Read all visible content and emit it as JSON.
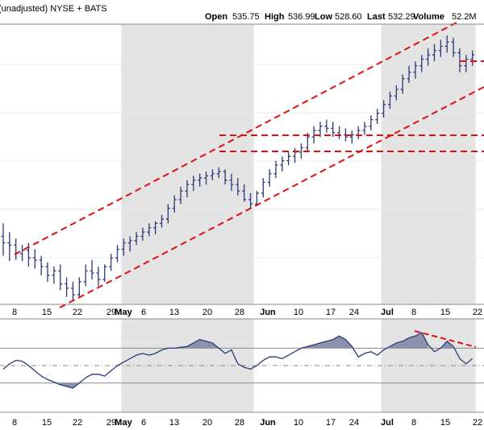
{
  "header": {
    "subtitle": "(unadjusted)  NYSE + BATS",
    "open_label": "Open",
    "open_value": "535.75",
    "high_label": "High",
    "high_value": "536.99",
    "low_label": "Low",
    "low_value": "528.60",
    "last_label": "Last",
    "last_value": "532.29",
    "volume_label": "Volume",
    "volume_value": "52.2M"
  },
  "colors": {
    "bar": "#2b3a78",
    "trendline": "#e01010",
    "shade": "#e4e4e4",
    "osc_fill": "#8a93ab",
    "osc_line": "#2b3a78",
    "grid": "#c8c8c8",
    "border": "#888888"
  },
  "chart_data": [
    {
      "type": "ohlc",
      "x": [
        "Apr 5",
        "Apr 8",
        "Apr 9",
        "Apr 10",
        "Apr 11",
        "Apr 12",
        "Apr 15",
        "Apr 16",
        "Apr 17",
        "Apr 18",
        "Apr 19",
        "Apr 22",
        "Apr 23",
        "Apr 24",
        "Apr 25",
        "Apr 26",
        "Apr 29",
        "Apr 30",
        "May 1",
        "May 2",
        "May 3",
        "May 6",
        "May 7",
        "May 8",
        "May 9",
        "May 10",
        "May 13",
        "May 14",
        "May 15",
        "May 16",
        "May 17",
        "May 20",
        "May 21",
        "May 22",
        "May 23",
        "May 24",
        "May 28",
        "May 29",
        "May 30",
        "May 31",
        "Jun 3",
        "Jun 4",
        "Jun 5",
        "Jun 6",
        "Jun 7",
        "Jun 10",
        "Jun 11",
        "Jun 12",
        "Jun 13",
        "Jun 14",
        "Jun 17",
        "Jun 18",
        "Jun 19",
        "Jun 20",
        "Jun 21",
        "Jun 24",
        "Jun 25",
        "Jun 26",
        "Jun 27",
        "Jun 28",
        "Jul 1",
        "Jul 2",
        "Jul 3",
        "Jul 5",
        "Jul 8",
        "Jul 9",
        "Jul 10",
        "Jul 11",
        "Jul 12",
        "Jul 15",
        "Jul 16",
        "Jul 17",
        "Jul 18",
        "Jul 19",
        "Jul 22"
      ],
      "ohlc": [
        [
          318,
          330,
          300,
          312
        ],
        [
          312,
          322,
          295,
          310
        ],
        [
          310,
          316,
          296,
          302
        ],
        [
          302,
          310,
          295,
          305
        ],
        [
          305,
          312,
          290,
          298
        ],
        [
          298,
          306,
          288,
          296
        ],
        [
          296,
          300,
          282,
          290
        ],
        [
          290,
          294,
          276,
          282
        ],
        [
          282,
          290,
          274,
          286
        ],
        [
          286,
          292,
          268,
          274
        ],
        [
          274,
          280,
          262,
          270
        ],
        [
          270,
          276,
          258,
          264
        ],
        [
          264,
          280,
          262,
          276
        ],
        [
          276,
          292,
          272,
          286
        ],
        [
          286,
          296,
          278,
          284
        ],
        [
          284,
          290,
          272,
          278
        ],
        [
          278,
          292,
          276,
          290
        ],
        [
          290,
          302,
          286,
          298
        ],
        [
          298,
          310,
          294,
          306
        ],
        [
          306,
          316,
          300,
          312
        ],
        [
          312,
          318,
          304,
          314
        ],
        [
          314,
          322,
          310,
          318
        ],
        [
          318,
          326,
          314,
          322
        ],
        [
          322,
          330,
          318,
          326
        ],
        [
          326,
          332,
          320,
          330
        ],
        [
          330,
          338,
          326,
          334
        ],
        [
          334,
          348,
          330,
          344
        ],
        [
          344,
          356,
          340,
          352
        ],
        [
          352,
          364,
          348,
          360
        ],
        [
          360,
          370,
          354,
          366
        ],
        [
          366,
          374,
          360,
          370
        ],
        [
          370,
          376,
          364,
          372
        ],
        [
          372,
          378,
          366,
          374
        ],
        [
          374,
          380,
          370,
          376
        ],
        [
          376,
          382,
          372,
          378
        ],
        [
          378,
          380,
          366,
          370
        ],
        [
          370,
          376,
          360,
          366
        ],
        [
          366,
          372,
          356,
          360
        ],
        [
          360,
          366,
          350,
          352
        ],
        [
          352,
          358,
          344,
          348
        ],
        [
          348,
          360,
          346,
          358
        ],
        [
          358,
          372,
          354,
          368
        ],
        [
          368,
          380,
          364,
          376
        ],
        [
          376,
          388,
          372,
          384
        ],
        [
          384,
          392,
          378,
          388
        ],
        [
          388,
          396,
          384,
          392
        ],
        [
          392,
          400,
          386,
          396
        ],
        [
          396,
          404,
          390,
          400
        ],
        [
          400,
          414,
          396,
          410
        ],
        [
          410,
          420,
          404,
          416
        ],
        [
          416,
          424,
          410,
          420
        ],
        [
          420,
          426,
          414,
          418
        ],
        [
          418,
          424,
          410,
          414
        ],
        [
          414,
          420,
          408,
          412
        ],
        [
          412,
          418,
          406,
          410
        ],
        [
          410,
          416,
          404,
          412
        ],
        [
          412,
          420,
          408,
          416
        ],
        [
          416,
          424,
          412,
          420
        ],
        [
          420,
          430,
          416,
          426
        ],
        [
          426,
          436,
          422,
          432
        ],
        [
          432,
          444,
          428,
          440
        ],
        [
          440,
          452,
          436,
          448
        ],
        [
          448,
          458,
          444,
          454
        ],
        [
          454,
          468,
          450,
          464
        ],
        [
          464,
          476,
          460,
          470
        ],
        [
          470,
          480,
          464,
          476
        ],
        [
          476,
          486,
          470,
          482
        ],
        [
          482,
          492,
          476,
          486
        ],
        [
          486,
          496,
          480,
          490
        ],
        [
          490,
          500,
          484,
          494
        ],
        [
          494,
          504,
          488,
          498
        ],
        [
          498,
          502,
          484,
          488
        ],
        [
          488,
          492,
          470,
          476
        ],
        [
          476,
          486,
          470,
          482
        ],
        [
          482,
          490,
          476,
          486
        ]
      ],
      "trendlines": [
        {
          "name": "upper-channel",
          "style": "dashed"
        },
        {
          "name": "lower-channel",
          "style": "dashed"
        },
        {
          "name": "resistance-1",
          "style": "dashed"
        },
        {
          "name": "resistance-2",
          "style": "dashed"
        }
      ],
      "shaded_months": [
        "May",
        "Jul"
      ]
    },
    {
      "type": "line",
      "name_role": "oscillator",
      "values": [
        46,
        52,
        56,
        55,
        50,
        44,
        38,
        34,
        31,
        28,
        26,
        24,
        30,
        36,
        40,
        40,
        38,
        44,
        50,
        54,
        58,
        62,
        64,
        62,
        64,
        68,
        70,
        70,
        71,
        72,
        76,
        80,
        78,
        76,
        70,
        64,
        68,
        52,
        48,
        46,
        50,
        56,
        60,
        60,
        58,
        62,
        66,
        70,
        72,
        74,
        76,
        78,
        80,
        84,
        80,
        72,
        60,
        64,
        66,
        62,
        68,
        72,
        76,
        78,
        82,
        84,
        88,
        74,
        66,
        70,
        78,
        72,
        58,
        52,
        58
      ],
      "grid": true
    }
  ],
  "x_ticks": [
    {
      "label": "8",
      "bold": false
    },
    {
      "label": "15",
      "bold": false
    },
    {
      "label": "22",
      "bold": false
    },
    {
      "label": "29",
      "bold": false
    },
    {
      "label": "May",
      "bold": true
    },
    {
      "label": "6",
      "bold": false
    },
    {
      "label": "13",
      "bold": false
    },
    {
      "label": "20",
      "bold": false
    },
    {
      "label": "28",
      "bold": false
    },
    {
      "label": "Jun",
      "bold": true
    },
    {
      "label": "10",
      "bold": false
    },
    {
      "label": "17",
      "bold": false
    },
    {
      "label": "24",
      "bold": false
    },
    {
      "label": "Jul",
      "bold": true
    },
    {
      "label": "8",
      "bold": false
    },
    {
      "label": "15",
      "bold": false
    },
    {
      "label": "22",
      "bold": false
    }
  ]
}
